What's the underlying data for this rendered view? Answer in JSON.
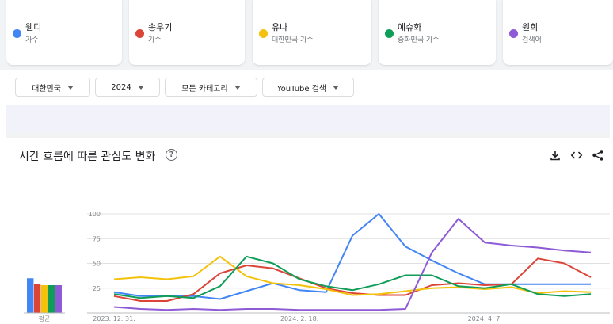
{
  "terms": [
    {
      "name": "웬디",
      "type": "가수",
      "color": "#4285f4"
    },
    {
      "name": "송우기",
      "type": "가수",
      "color": "#db4437"
    },
    {
      "name": "유나",
      "type": "대한민국 가수",
      "color": "#f4c20d"
    },
    {
      "name": "예슈화",
      "type": "중화민국 가수",
      "color": "#0f9d58"
    },
    {
      "name": "원희",
      "type": "검색어",
      "color": "#8e5ad6"
    }
  ],
  "filters": {
    "region": "대한민국",
    "year": "2024",
    "category": "모든 카테고리",
    "search_type": "YouTube 검색"
  },
  "section": {
    "title": "시간 흐름에 따른 관심도 변화",
    "help": "?"
  },
  "icons": {
    "download": "download-icon",
    "embed": "code-icon",
    "share": "share-icon",
    "help": "help-circle-icon"
  },
  "chart_data": {
    "type": "line",
    "x": [
      "2023. 12. 31.",
      "2024. 1. 7.",
      "2024. 1. 14.",
      "2024. 1. 21.",
      "2024. 1. 28.",
      "2024. 2. 4.",
      "2024. 2. 11.",
      "2024. 2. 18.",
      "2024. 2. 25.",
      "2024. 3. 3.",
      "2024. 3. 10.",
      "2024. 3. 17.",
      "2024. 3. 24.",
      "2024. 3. 31.",
      "2024. 4. 7.",
      "2024. 4. 14.",
      "2024. 4. 21.",
      "2024. 4. 28.",
      "2024. 5. 5."
    ],
    "x_tick_labels": [
      "2023. 12. 31.",
      "2024. 2. 18.",
      "2024. 4. 7."
    ],
    "x_tick_indices": [
      0,
      7,
      14
    ],
    "ylim": [
      0,
      100
    ],
    "yticks": [
      25,
      50,
      75,
      100
    ],
    "grid": true,
    "series": [
      {
        "name": "웬디",
        "color": "#4285f4",
        "values": [
          21,
          17,
          17,
          17,
          14,
          22,
          30,
          23,
          21,
          78,
          100,
          67,
          53,
          40,
          29,
          29,
          29,
          29,
          29
        ]
      },
      {
        "name": "송우기",
        "color": "#db4437",
        "values": [
          17,
          12,
          12,
          19,
          40,
          48,
          45,
          35,
          25,
          20,
          18,
          18,
          28,
          30,
          28,
          29,
          55,
          50,
          36
        ]
      },
      {
        "name": "유나",
        "color": "#f4c20d",
        "values": [
          34,
          36,
          34,
          37,
          57,
          37,
          30,
          28,
          24,
          18,
          19,
          22,
          25,
          26,
          24,
          26,
          20,
          22,
          21
        ]
      },
      {
        "name": "예슈화",
        "color": "#0f9d58",
        "values": [
          19,
          15,
          17,
          15,
          27,
          57,
          50,
          34,
          27,
          23,
          29,
          38,
          38,
          27,
          25,
          29,
          19,
          17,
          19
        ]
      },
      {
        "name": "원희",
        "color": "#8e5ad6",
        "values": [
          6,
          4,
          3,
          4,
          3,
          4,
          4,
          3,
          3,
          3,
          3,
          4,
          61,
          95,
          71,
          68,
          66,
          63,
          61
        ]
      }
    ],
    "average": {
      "label": "평균",
      "values": [
        35,
        29,
        28,
        28,
        28
      ]
    }
  }
}
